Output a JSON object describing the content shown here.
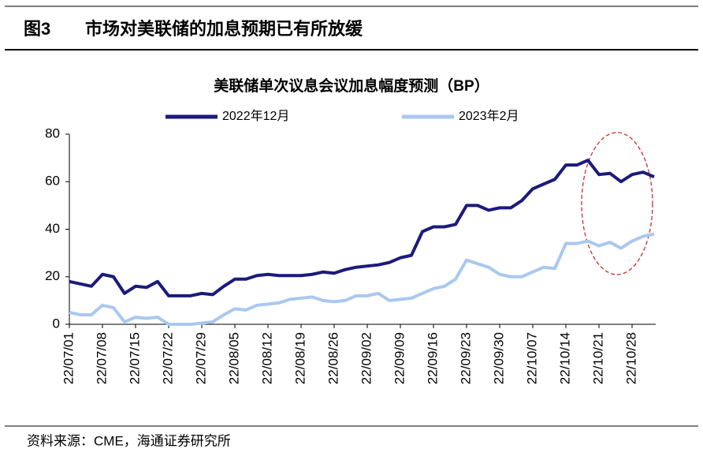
{
  "figure": {
    "number": "图3",
    "title": "市场对美联储的加息预期已有所放缓",
    "source": "资料来源：CME，海通证券研究所"
  },
  "chart_data": {
    "type": "line",
    "title": "美联储单次议息会议加息幅度预测（BP）",
    "categories": [
      "22/07/01",
      null,
      null,
      "22/07/08",
      null,
      null,
      "22/07/15",
      null,
      null,
      "22/07/22",
      null,
      null,
      "22/07/29",
      null,
      null,
      "22/08/05",
      null,
      null,
      "22/08/12",
      null,
      null,
      "22/08/19",
      null,
      null,
      "22/08/26",
      null,
      null,
      "22/09/02",
      null,
      null,
      "22/09/09",
      null,
      null,
      "22/09/16",
      null,
      null,
      "22/09/23",
      null,
      null,
      "22/09/30",
      null,
      null,
      "22/10/07",
      null,
      null,
      "22/10/14",
      null,
      null,
      "22/10/21",
      null,
      null,
      "22/10/28",
      null,
      null
    ],
    "series": [
      {
        "name": "2022年12月",
        "color": "#1c1a7a",
        "values": [
          18,
          17,
          16,
          21,
          20,
          13,
          16,
          15.5,
          18,
          12,
          12,
          12,
          13,
          12.5,
          16,
          19,
          19,
          20.5,
          21,
          20.5,
          20.5,
          20.5,
          21,
          22,
          21.5,
          23,
          24,
          24.5,
          25,
          26,
          28,
          29,
          39,
          41,
          41,
          42,
          50,
          50,
          48,
          49,
          49,
          52,
          57,
          59,
          61,
          67,
          67,
          69,
          63,
          63.5,
          60,
          63,
          64,
          62
        ]
      },
      {
        "name": "2023年2月",
        "color": "#a9c8f0",
        "values": [
          5,
          4,
          4,
          8,
          7,
          1,
          3,
          2.5,
          3,
          0,
          0,
          0,
          0.5,
          1,
          4,
          6.5,
          6,
          8,
          8.5,
          9,
          10.5,
          11,
          11.5,
          10,
          9.5,
          10,
          12,
          12,
          13,
          10,
          10.5,
          11,
          13,
          15,
          16,
          19,
          27,
          25.5,
          24,
          21,
          20,
          20,
          22,
          24,
          23.5,
          34,
          34,
          35,
          33,
          34.5,
          32,
          35,
          37,
          38
        ]
      }
    ],
    "ylim": [
      0,
      80
    ],
    "yticks": [
      0,
      20,
      40,
      60,
      80
    ],
    "legend": "top"
  }
}
